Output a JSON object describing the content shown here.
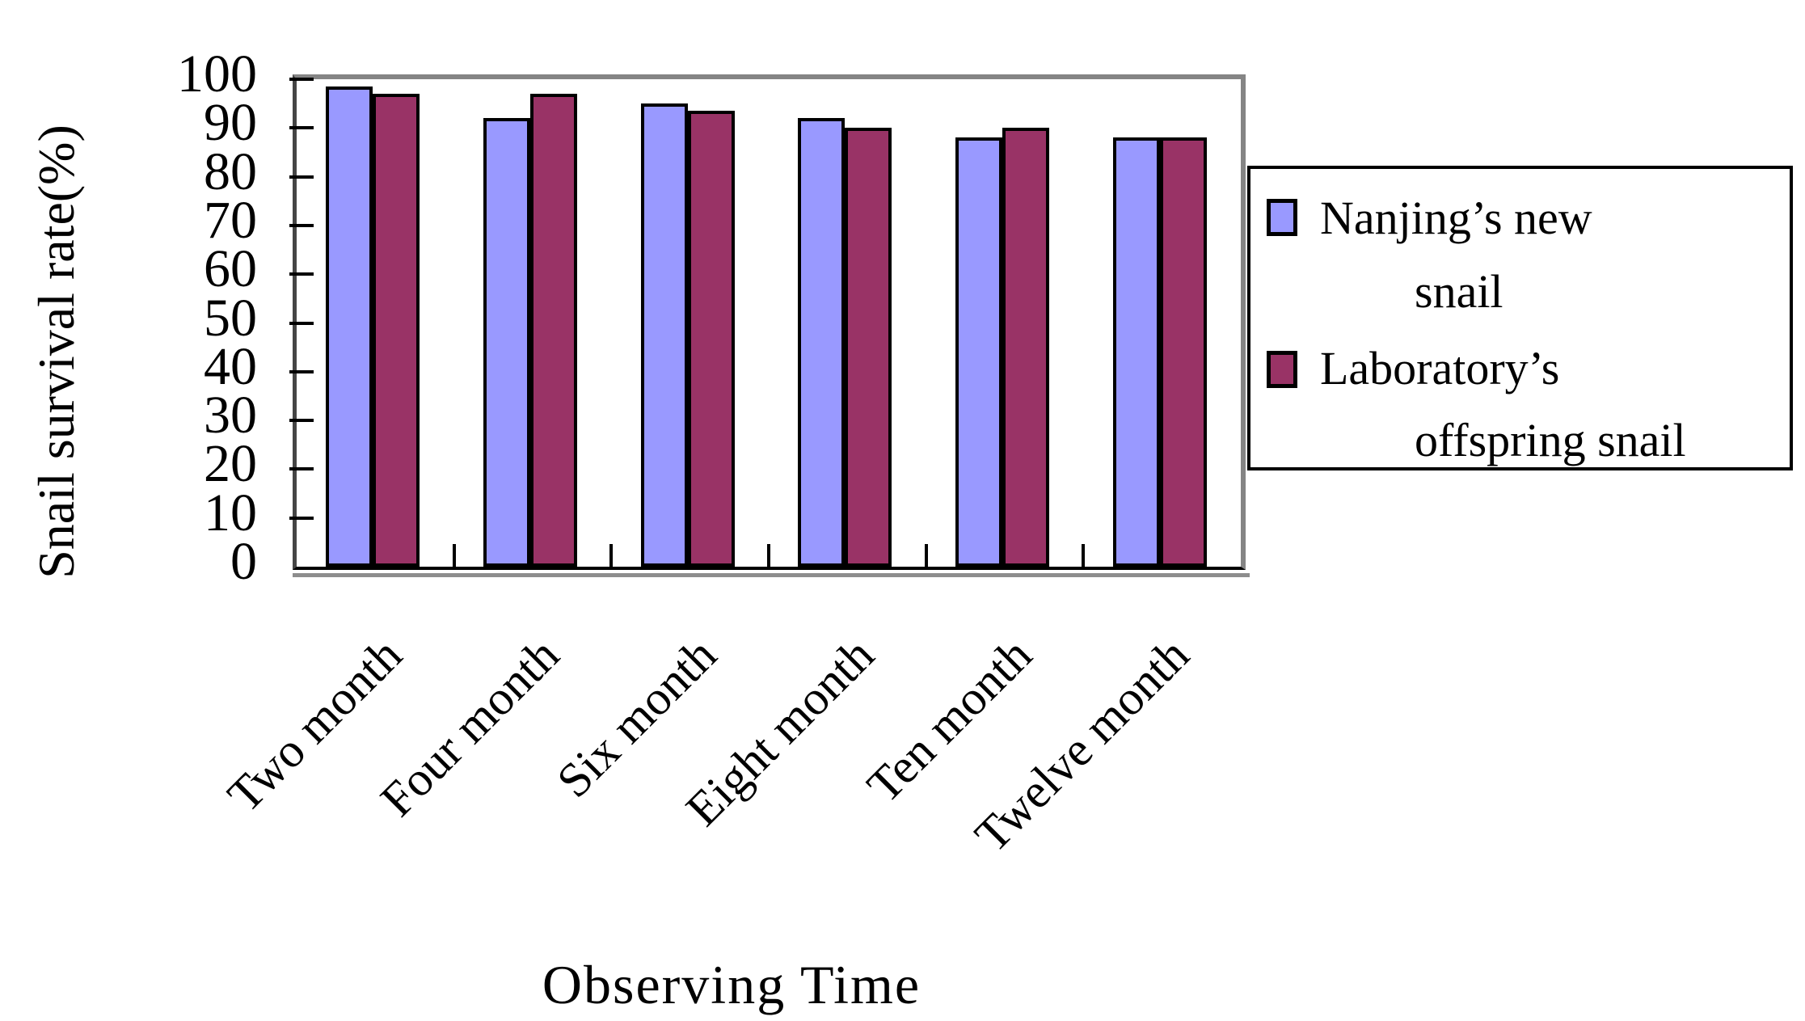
{
  "y_axis": {
    "title": "Snail survival rate(%)",
    "ticks": [
      100,
      90,
      80,
      70,
      60,
      50,
      40,
      30,
      20,
      10,
      0
    ],
    "min": 0,
    "max": 100
  },
  "x_axis": {
    "title": "Observing Time"
  },
  "legend": {
    "entries": [
      {
        "label": "Nanjing’s new snail",
        "lines": [
          "Nanjing’s new",
          "snail"
        ],
        "color": "#9999FF"
      },
      {
        "label": "Laboratory’s offspring snail",
        "lines": [
          "Laboratory’s",
          "offspring snail"
        ],
        "color": "#993366"
      }
    ]
  },
  "chart_data": {
    "type": "bar",
    "title": "",
    "categories": [
      "Two month",
      "Four month",
      "Six month",
      "Eight month",
      "Ten month",
      "Twelve month"
    ],
    "series": [
      {
        "name": "Nanjing’s new snail",
        "color": "#9999FF",
        "values": [
          98.5,
          92,
          95,
          92,
          88,
          88
        ]
      },
      {
        "name": "Laboratory’s offspring snail",
        "color": "#993366",
        "values": [
          97,
          97,
          93.5,
          90,
          90,
          88
        ]
      }
    ],
    "xlabel": "Observing Time",
    "ylabel": "Snail survival rate(%)",
    "ylim": [
      0,
      100
    ],
    "ytick_step": 10,
    "bar_outline": "#000000",
    "grid": false,
    "legend_position": "right"
  }
}
